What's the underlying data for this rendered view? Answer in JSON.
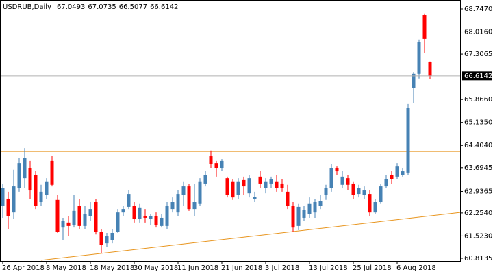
{
  "chart_data": {
    "type": "candlestick",
    "title": "USDRUB,Daily",
    "categories": [
      "26 Apr 2018",
      null,
      null,
      null,
      null,
      null,
      null,
      null,
      "8 May 2018",
      null,
      null,
      null,
      null,
      null,
      null,
      null,
      "18 May 2018",
      null,
      null,
      null,
      null,
      null,
      null,
      null,
      "30 May 2018",
      null,
      null,
      null,
      null,
      null,
      null,
      null,
      "11 Jun 2018",
      null,
      null,
      null,
      null,
      null,
      null,
      null,
      "21 Jun 2018",
      null,
      null,
      null,
      null,
      null,
      null,
      null,
      "3 Jul 2018",
      null,
      null,
      null,
      null,
      null,
      null,
      null,
      "13 Jul 2018",
      null,
      null,
      null,
      null,
      null,
      null,
      null,
      "25 Jul 2018",
      null,
      null,
      null,
      null,
      null,
      null,
      null,
      "6 Aug 2018",
      null,
      null,
      null,
      null,
      null,
      null
    ],
    "open": [
      62.49,
      62.71,
      62.27,
      63.04,
      63.36,
      63.69,
      63.47,
      62.6,
      62.82,
      63.91,
      62.67,
      61.79,
      61.95,
      61.88,
      62.49,
      61.84,
      62.16,
      62.6,
      61.66,
      61.29,
      61.4,
      61.66,
      62.27,
      62.45,
      62.49,
      62.06,
      62.16,
      62.06,
      62.16,
      61.84,
      61.84,
      62.38,
      62.27,
      62.82,
      63.1,
      62.38,
      62.54,
      63.19,
      64.06,
      63.84,
      63.69,
      63.36,
      63.26,
      62.82,
      63.3,
      62.88,
      62.71,
      63.41,
      63.04,
      63.19,
      63.26,
      63.19,
      62.93,
      62.49,
      61.84,
      62.1,
      62.23,
      62.27,
      62.49,
      62.82,
      63.04,
      63.69,
      63.15,
      63.36,
      63.19,
      62.86,
      62.82,
      62.86,
      62.27,
      62.6,
      63.1,
      63.47,
      63.41,
      63.47,
      63.54,
      66.24,
      66.68,
      68.55,
      67.0493
    ],
    "high": [
      63.19,
      62.93,
      63.63,
      64.01,
      64.32,
      63.91,
      63.58,
      63.15,
      63.36,
      64.06,
      62.82,
      62.1,
      62.16,
      62.82,
      62.71,
      62.49,
      62.6,
      62.71,
      61.73,
      61.62,
      61.73,
      62.38,
      62.49,
      62.97,
      62.6,
      62.54,
      62.38,
      62.23,
      62.27,
      62.23,
      62.6,
      62.75,
      62.97,
      63.26,
      63.19,
      63.19,
      63.36,
      63.58,
      64.24,
      63.91,
      63.97,
      63.41,
      63.32,
      63.36,
      63.41,
      63.47,
      62.93,
      63.58,
      63.36,
      63.41,
      63.47,
      63.32,
      63.15,
      62.6,
      62.54,
      62.49,
      62.75,
      62.71,
      62.82,
      63.15,
      63.8,
      63.73,
      63.58,
      63.47,
      63.26,
      63.15,
      63.1,
      62.97,
      62.71,
      63.19,
      63.47,
      63.58,
      63.84,
      63.69,
      65.72,
      66.74,
      67.77,
      68.6,
      67.0735
    ],
    "low": [
      62.1,
      61.73,
      62.06,
      62.93,
      63.04,
      62.71,
      62.38,
      62.49,
      62.71,
      63.1,
      61.62,
      61.4,
      61.51,
      61.79,
      61.73,
      61.73,
      62.01,
      61.57,
      60.97,
      61.18,
      61.29,
      61.62,
      62.16,
      62.38,
      61.95,
      61.95,
      61.95,
      61.88,
      61.79,
      61.79,
      61.73,
      62.27,
      62.16,
      62.49,
      62.32,
      62.16,
      62.49,
      63.1,
      63.69,
      63.41,
      63.58,
      62.75,
      62.67,
      62.71,
      62.82,
      62.75,
      62.6,
      63.04,
      62.88,
      63.04,
      62.93,
      62.93,
      62.38,
      61.66,
      61.71,
      62.01,
      62.1,
      62.1,
      62.38,
      62.67,
      62.93,
      63.47,
      63.04,
      62.97,
      62.71,
      62.75,
      62.71,
      62.16,
      62.23,
      62.54,
      63.04,
      63.19,
      63.32,
      63.41,
      63.47,
      65.76,
      66.53,
      67.35,
      66.5077
    ],
    "close": [
      63.04,
      62.16,
      63.1,
      63.84,
      64.01,
      62.97,
      62.49,
      62.93,
      63.26,
      63.15,
      61.66,
      62.01,
      61.84,
      62.32,
      61.84,
      62.23,
      62.38,
      61.66,
      61.23,
      61.51,
      61.62,
      62.27,
      62.38,
      62.86,
      62.06,
      62.43,
      62.1,
      62.16,
      61.88,
      62.1,
      62.49,
      62.6,
      62.86,
      63.1,
      62.38,
      62.6,
      63.26,
      63.47,
      63.8,
      63.69,
      63.91,
      62.82,
      62.75,
      63.26,
      63.1,
      63.36,
      62.77,
      63.19,
      63.26,
      63.32,
      63.04,
      63.04,
      62.49,
      61.79,
      62.45,
      62.36,
      62.54,
      62.6,
      62.64,
      63.04,
      63.69,
      63.58,
      63.41,
      63.15,
      62.82,
      63.04,
      62.97,
      62.27,
      62.6,
      63.1,
      63.32,
      63.32,
      63.73,
      63.58,
      65.59,
      66.68,
      67.68,
      67.79,
      66.6142
    ],
    "up_color": "#4682b4",
    "down_color": "#ff0000",
    "level_color": "#e8951e",
    "price_line_color": "#b0b0b0",
    "level": 64.21,
    "trendline": [
      60.75,
      62.27
    ],
    "ylim": [
      60.726,
      69.03
    ],
    "yticks": [
      60.8135,
      {
        "value": 61.523,
        "label": "61.5230"
      },
      {
        "value": 62.254,
        "label": "62.2540"
      },
      62.9365,
      63.6945,
      {
        "value": 64.404,
        "label": "64.4040"
      },
      {
        "value": 65.135,
        "label": "65.1350"
      },
      {
        "value": 65.866,
        "label": "65.8660"
      },
      67.3065,
      {
        "value": 68.016,
        "label": "68.0160"
      },
      {
        "value": 68.747,
        "label": "68.7470"
      }
    ]
  }
}
